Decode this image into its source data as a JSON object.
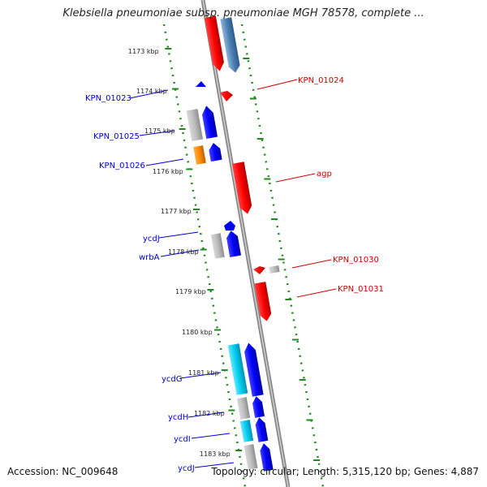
{
  "title": "Klebsiella pneumoniae subsp. pneumoniae MGH 78578, complete ...",
  "footer": {
    "accession": "Accession: NC_009648",
    "topology": "Topology: circular; Length: 5,315,120 bp; Genes: 4,887"
  },
  "kbp_ticks": [
    "1173 kbp",
    "1174 kbp",
    "1175 kbp",
    "1176 kbp",
    "1177 kbp",
    "1178 kbp",
    "1179 kbp",
    "1180 kbp",
    "1181 kbp",
    "1182 kbp",
    "1183 kbp"
  ],
  "genes_left": [
    {
      "label": "KPN_01023",
      "color": "#0000cc"
    },
    {
      "label": "KPN_01025",
      "color": "#0000cc"
    },
    {
      "label": "KPN_01026",
      "color": "#0000cc"
    },
    {
      "label": "ycdJ",
      "color": "#0000cc"
    },
    {
      "label": "wrbA",
      "color": "#0000cc"
    },
    {
      "label": "ycdG",
      "color": "#0000cc"
    },
    {
      "label": "ycdH",
      "color": "#0000cc"
    },
    {
      "label": "ycdI",
      "color": "#0000cc"
    },
    {
      "label": "ycdJ",
      "color": "#0000cc"
    }
  ],
  "genes_right": [
    {
      "label": "KPN_01024",
      "color": "#cc0000"
    },
    {
      "label": "agp",
      "color": "#cc0000"
    },
    {
      "label": "KPN_01030",
      "color": "#cc0000"
    },
    {
      "label": "KPN_01031",
      "color": "#cc0000"
    }
  ],
  "colors": {
    "forward": "#0000ee",
    "reverse": "#ee0000",
    "gray": "#b0b0b0",
    "orange": "#ff8800",
    "cyan": "#00ccee",
    "steel": "#4a7fb5",
    "dots": "#228822",
    "backbone": "#888888"
  }
}
